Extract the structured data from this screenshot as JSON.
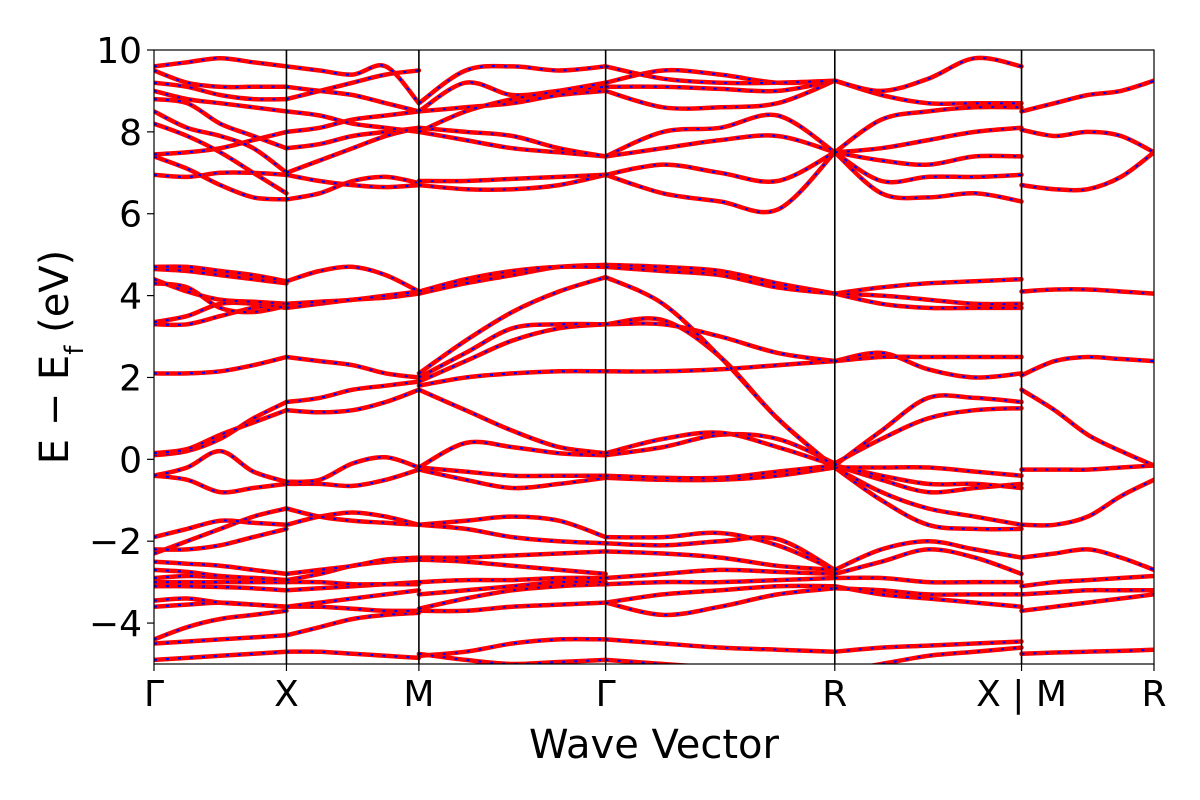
{
  "chart_data": {
    "type": "line",
    "xlabel": "Wave Vector",
    "ylabel_main": "E − E",
    "ylabel_sub": "f",
    "ylabel_unit": " (eV)",
    "ylim": [
      -5,
      10
    ],
    "yticks": [
      -4,
      -2,
      0,
      2,
      4,
      6,
      8,
      10
    ],
    "ytick_labels": [
      "−4",
      "−2",
      "0",
      "2",
      "4",
      "6",
      "8",
      "10"
    ],
    "grid": false,
    "colors": {
      "solid": "#ff0000",
      "dashed": "#0000ff",
      "axis": "#000000"
    },
    "path_points": [
      {
        "label": "Γ",
        "pos": 0.0
      },
      {
        "label": "X",
        "pos": 1.0
      },
      {
        "label": "M",
        "pos": 2.0
      },
      {
        "label": "Γ",
        "pos": 3.41
      },
      {
        "label": "R",
        "pos": 5.14
      },
      {
        "label": "X | M",
        "pos": 6.55
      },
      {
        "label": "R",
        "pos": 7.55
      }
    ],
    "segments": [
      {
        "x": [
          0,
          1
        ],
        "bands": [
          [
            -4.9,
            -4.85,
            -4.8,
            -4.75,
            -4.7
          ],
          [
            -4.5,
            -4.45,
            -4.4,
            -4.35,
            -4.3
          ],
          [
            -4.4,
            -4.1,
            -3.9,
            -3.8,
            -3.7
          ],
          [
            -3.6,
            -3.55,
            -3.5,
            -3.55,
            -3.6
          ],
          [
            -3.45,
            -3.4,
            -3.5,
            -3.55,
            -3.6
          ],
          [
            -3.1,
            -3.1,
            -3.12,
            -3.15,
            -3.2
          ],
          [
            -3.0,
            -3.0,
            -3.0,
            -3.0,
            -3.0
          ],
          [
            -2.9,
            -2.85,
            -2.88,
            -2.9,
            -2.95
          ],
          [
            -2.7,
            -2.75,
            -2.85,
            -2.9,
            -2.95
          ],
          [
            -2.5,
            -2.55,
            -2.6,
            -2.7,
            -2.8
          ],
          [
            -2.3,
            -2.0,
            -1.7,
            -1.4,
            -1.2
          ],
          [
            -2.2,
            -2.2,
            -2.1,
            -1.9,
            -1.7
          ],
          [
            -1.9,
            -1.7,
            -1.5,
            -1.55,
            -1.6
          ],
          [
            -0.4,
            -0.5,
            -0.8,
            -0.7,
            -0.6
          ],
          [
            -0.4,
            -0.2,
            0.2,
            -0.3,
            -0.55
          ],
          [
            0.1,
            0.2,
            0.5,
            1.0,
            1.4
          ],
          [
            0.15,
            0.25,
            0.6,
            0.9,
            1.2
          ],
          [
            2.1,
            2.1,
            2.15,
            2.3,
            2.5
          ],
          [
            3.3,
            3.3,
            3.5,
            3.7,
            3.8
          ],
          [
            3.35,
            3.5,
            3.8,
            3.8,
            3.7
          ],
          [
            4.3,
            4.2,
            3.7,
            3.6,
            3.75
          ],
          [
            4.4,
            4.1,
            3.9,
            3.85,
            3.8
          ],
          [
            4.65,
            4.6,
            4.5,
            4.4,
            4.3
          ],
          [
            4.7,
            4.7,
            4.6,
            4.5,
            4.35
          ],
          [
            6.95,
            6.9,
            7.0,
            7.0,
            6.95
          ],
          [
            7.4,
            7.1,
            6.7,
            6.4,
            6.35
          ],
          [
            7.45,
            7.5,
            7.6,
            7.8,
            8.0
          ],
          [
            8.2,
            7.9,
            7.5,
            7.0,
            6.5
          ],
          [
            8.5,
            8.1,
            7.9,
            7.6,
            7.0
          ],
          [
            8.8,
            8.7,
            8.2,
            7.9,
            7.6
          ],
          [
            9.0,
            8.8,
            8.7,
            8.6,
            8.5
          ],
          [
            9.2,
            9.1,
            8.9,
            8.8,
            8.8
          ],
          [
            9.5,
            9.2,
            9.1,
            9.1,
            9.1
          ],
          [
            9.6,
            9.7,
            9.8,
            9.7,
            9.6
          ]
        ]
      },
      {
        "x": [
          1,
          2
        ],
        "bands": [
          [
            -4.7,
            -4.7,
            -4.75,
            -4.8,
            -4.85
          ],
          [
            -4.3,
            -4.1,
            -3.9,
            -3.8,
            -3.75
          ],
          [
            -3.6,
            -3.6,
            -3.65,
            -3.7,
            -3.7
          ],
          [
            -3.6,
            -3.5,
            -3.4,
            -3.3,
            -3.2
          ],
          [
            -3.2,
            -3.15,
            -3.1,
            -3.05,
            -3.0
          ],
          [
            -3.0,
            -3.0,
            -3.05,
            -3.05,
            -3.05
          ],
          [
            -2.95,
            -2.8,
            -2.6,
            -2.5,
            -2.45
          ],
          [
            -2.8,
            -2.7,
            -2.6,
            -2.45,
            -2.4
          ],
          [
            -1.6,
            -1.4,
            -1.3,
            -1.4,
            -1.6
          ],
          [
            -1.2,
            -1.4,
            -1.5,
            -1.55,
            -1.6
          ],
          [
            -0.6,
            -0.6,
            -0.65,
            -0.5,
            -0.25
          ],
          [
            -0.55,
            -0.5,
            -0.1,
            0.05,
            -0.2
          ],
          [
            1.2,
            1.15,
            1.2,
            1.4,
            1.7
          ],
          [
            1.4,
            1.5,
            1.7,
            1.8,
            1.9
          ],
          [
            2.5,
            2.4,
            2.3,
            2.1,
            2.0
          ],
          [
            3.7,
            3.8,
            3.9,
            3.95,
            4.05
          ],
          [
            3.8,
            3.85,
            3.9,
            4.0,
            4.1
          ],
          [
            4.35,
            4.6,
            4.7,
            4.5,
            4.1
          ],
          [
            6.35,
            6.5,
            6.8,
            6.9,
            6.75
          ],
          [
            6.95,
            6.8,
            6.7,
            6.65,
            6.7
          ],
          [
            7.0,
            7.3,
            7.6,
            7.9,
            8.1
          ],
          [
            7.6,
            7.7,
            7.9,
            8.0,
            8.1
          ],
          [
            8.0,
            8.1,
            8.3,
            8.4,
            8.5
          ],
          [
            8.5,
            8.4,
            8.2,
            8.1,
            8.0
          ],
          [
            8.8,
            9.0,
            9.2,
            9.4,
            9.5
          ],
          [
            9.1,
            9.0,
            8.9,
            8.7,
            8.5
          ],
          [
            9.6,
            9.5,
            9.4,
            9.6,
            8.7
          ]
        ]
      },
      {
        "x": [
          2,
          3.41
        ],
        "bands": [
          [
            -4.8,
            -4.7,
            -4.5,
            -4.4,
            -4.4
          ],
          [
            -4.75,
            -4.9,
            -5.0,
            -4.95,
            -4.9
          ],
          [
            -3.7,
            -3.7,
            -3.6,
            -3.55,
            -3.5
          ],
          [
            -3.65,
            -3.4,
            -3.2,
            -3.1,
            -3.05
          ],
          [
            -3.3,
            -3.2,
            -3.1,
            -3.0,
            -3.0
          ],
          [
            -3.0,
            -2.95,
            -2.95,
            -2.9,
            -2.9
          ],
          [
            -2.45,
            -2.5,
            -2.6,
            -2.7,
            -2.8
          ],
          [
            -2.4,
            -2.4,
            -2.35,
            -2.3,
            -2.25
          ],
          [
            -1.6,
            -1.7,
            -1.9,
            -2.0,
            -2.05
          ],
          [
            -1.6,
            -1.5,
            -1.4,
            -1.5,
            -1.9
          ],
          [
            -0.25,
            -0.5,
            -0.7,
            -0.6,
            -0.45
          ],
          [
            -0.2,
            -0.3,
            -0.4,
            -0.4,
            -0.4
          ],
          [
            -0.2,
            0.4,
            0.3,
            0.15,
            0.1
          ],
          [
            1.7,
            1.2,
            0.7,
            0.3,
            0.15
          ],
          [
            1.8,
            2.0,
            2.1,
            2.15,
            2.15
          ],
          [
            1.9,
            2.4,
            2.9,
            3.2,
            3.3
          ],
          [
            2.0,
            2.6,
            3.2,
            3.3,
            3.3
          ],
          [
            2.1,
            2.9,
            3.6,
            4.1,
            4.45
          ],
          [
            4.05,
            4.3,
            4.5,
            4.7,
            4.75
          ],
          [
            4.1,
            4.4,
            4.6,
            4.7,
            4.7
          ],
          [
            6.7,
            6.6,
            6.6,
            6.7,
            6.95
          ],
          [
            6.8,
            6.8,
            6.85,
            6.9,
            6.95
          ],
          [
            8.0,
            7.8,
            7.6,
            7.5,
            7.4
          ],
          [
            8.1,
            8.0,
            7.9,
            7.6,
            7.4
          ],
          [
            8.5,
            8.6,
            8.7,
            8.9,
            9.0
          ],
          [
            8.5,
            9.2,
            8.9,
            9.0,
            9.1
          ],
          [
            8.0,
            8.5,
            8.8,
            9.0,
            9.2
          ],
          [
            8.7,
            9.5,
            9.6,
            9.5,
            9.6
          ]
        ]
      },
      {
        "x": [
          3.41,
          5.14
        ],
        "bands": [
          [
            -4.4,
            -4.5,
            -4.6,
            -4.65,
            -4.7
          ],
          [
            -4.9,
            -5.0,
            -5.1,
            -5.2,
            -5.2
          ],
          [
            -3.5,
            -3.3,
            -3.2,
            -3.1,
            -3.1
          ],
          [
            -3.5,
            -3.8,
            -3.6,
            -3.3,
            -3.15
          ],
          [
            -3.05,
            -3.0,
            -3.0,
            -2.95,
            -2.9
          ],
          [
            -2.9,
            -2.8,
            -2.7,
            -2.75,
            -2.8
          ],
          [
            -2.25,
            -2.3,
            -2.4,
            -2.6,
            -2.7
          ],
          [
            -2.05,
            -2.1,
            -2.0,
            -1.95,
            -2.7
          ],
          [
            -1.9,
            -1.9,
            -1.8,
            -2.1,
            -2.7
          ],
          [
            -0.45,
            -0.5,
            -0.5,
            -0.4,
            -0.2
          ],
          [
            -0.4,
            -0.45,
            -0.45,
            -0.3,
            -0.15
          ],
          [
            0.1,
            0.3,
            0.6,
            0.5,
            -0.1
          ],
          [
            0.15,
            0.5,
            0.65,
            0.3,
            -0.15
          ],
          [
            2.15,
            2.15,
            2.2,
            2.3,
            2.4
          ],
          [
            3.3,
            3.3,
            3.0,
            2.6,
            2.4
          ],
          [
            3.3,
            3.4,
            2.5,
            1.0,
            -0.2
          ],
          [
            4.45,
            3.8,
            2.5,
            1.0,
            -0.2
          ],
          [
            4.75,
            4.7,
            4.6,
            4.3,
            4.05
          ],
          [
            4.7,
            4.6,
            4.5,
            4.2,
            4.05
          ],
          [
            6.95,
            6.5,
            6.3,
            6.1,
            7.5
          ],
          [
            6.95,
            7.2,
            7.0,
            6.8,
            7.5
          ],
          [
            7.4,
            7.6,
            7.8,
            7.9,
            7.5
          ],
          [
            7.4,
            8.0,
            8.1,
            8.4,
            7.5
          ],
          [
            9.0,
            8.6,
            8.6,
            8.7,
            9.25
          ],
          [
            9.1,
            9.1,
            9.05,
            9.0,
            9.25
          ],
          [
            9.2,
            9.5,
            9.4,
            9.2,
            9.25
          ],
          [
            9.6,
            9.3,
            9.2,
            9.2,
            9.25
          ]
        ]
      },
      {
        "x": [
          5.14,
          6.55
        ],
        "bands": [
          [
            -4.7,
            -4.6,
            -4.55,
            -4.5,
            -4.45
          ],
          [
            -5.2,
            -5.0,
            -4.8,
            -4.7,
            -4.6
          ],
          [
            -3.1,
            -3.3,
            -3.4,
            -3.5,
            -3.6
          ],
          [
            -3.15,
            -3.2,
            -3.3,
            -3.3,
            -3.3
          ],
          [
            -2.9,
            -2.9,
            -3.0,
            -3.0,
            -3.0
          ],
          [
            -2.8,
            -2.5,
            -2.2,
            -2.4,
            -2.8
          ],
          [
            -2.7,
            -2.2,
            -2.0,
            -2.2,
            -2.4
          ],
          [
            -0.2,
            -1.0,
            -1.6,
            -1.7,
            -1.7
          ],
          [
            -0.2,
            -0.8,
            -1.2,
            -1.4,
            -1.6
          ],
          [
            -0.15,
            -0.5,
            -0.8,
            -0.7,
            -0.6
          ],
          [
            -0.15,
            -0.4,
            -0.6,
            -0.6,
            -0.7
          ],
          [
            -0.2,
            -0.2,
            -0.2,
            -0.3,
            -0.4
          ],
          [
            -0.1,
            0.5,
            1.0,
            1.2,
            1.25
          ],
          [
            -0.15,
            0.7,
            1.5,
            1.5,
            1.4
          ],
          [
            2.4,
            2.6,
            2.2,
            2.0,
            2.1
          ],
          [
            2.4,
            2.5,
            2.5,
            2.5,
            2.5
          ],
          [
            4.05,
            3.8,
            3.7,
            3.7,
            3.7
          ],
          [
            4.05,
            4.2,
            4.3,
            4.35,
            4.4
          ],
          [
            4.05,
            4.0,
            3.9,
            3.8,
            3.8
          ],
          [
            7.5,
            6.5,
            6.4,
            6.5,
            6.3
          ],
          [
            7.5,
            6.8,
            6.9,
            6.9,
            6.95
          ],
          [
            7.5,
            7.3,
            7.2,
            7.4,
            7.4
          ],
          [
            7.5,
            8.3,
            8.5,
            8.6,
            8.6
          ],
          [
            9.25,
            8.9,
            8.7,
            8.7,
            8.7
          ],
          [
            9.25,
            9.0,
            9.3,
            9.8,
            9.6
          ],
          [
            7.5,
            7.6,
            7.8,
            8.0,
            8.1
          ]
        ]
      },
      {
        "x": [
          6.55,
          7.55
        ],
        "bands": [
          [
            -4.75,
            -4.72,
            -4.7,
            -4.68,
            -4.65
          ],
          [
            -3.7,
            -3.6,
            -3.5,
            -3.4,
            -3.3
          ],
          [
            -3.3,
            -3.25,
            -3.2,
            -3.2,
            -3.2
          ],
          [
            -3.1,
            -3.0,
            -2.95,
            -2.9,
            -2.85
          ],
          [
            -2.4,
            -2.3,
            -2.2,
            -2.4,
            -2.7
          ],
          [
            -1.6,
            -1.6,
            -1.4,
            -0.9,
            -0.5
          ],
          [
            -0.25,
            -0.25,
            -0.25,
            -0.2,
            -0.15
          ],
          [
            1.7,
            1.2,
            0.6,
            0.2,
            -0.15
          ],
          [
            2.05,
            2.4,
            2.5,
            2.45,
            2.4
          ],
          [
            4.1,
            4.15,
            4.15,
            4.1,
            4.05
          ],
          [
            6.7,
            6.6,
            6.6,
            6.9,
            7.5
          ],
          [
            8.05,
            7.9,
            8.0,
            7.9,
            7.5
          ],
          [
            8.5,
            8.7,
            8.9,
            9.0,
            9.25
          ]
        ]
      }
    ]
  }
}
